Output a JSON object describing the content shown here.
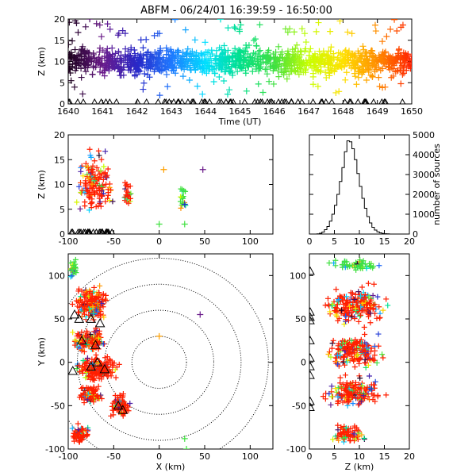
{
  "title": "ABFM - 06/24/01 16:39:59 - 16:50:00",
  "colors": {
    "background": "#ffffff",
    "axes": "#000000",
    "time_scale": [
      "#1a001a",
      "#6a1a8a",
      "#2828c8",
      "#1e78ff",
      "#00e0ff",
      "#00e08c",
      "#40e040",
      "#c8ff00",
      "#ffe000",
      "#ff8c00",
      "#ff1e00"
    ]
  },
  "chart_data": [
    {
      "id": "time-height",
      "type": "scatter",
      "xlabel": "Time (UT)",
      "ylabel": "Z (km)",
      "xlim": [
        1640,
        1650
      ],
      "ylim": [
        0,
        20
      ],
      "xticks": [
        "1640",
        "1641",
        "1642",
        "1643",
        "1644",
        "1645",
        "1646",
        "1647",
        "1648",
        "1649",
        "1650"
      ],
      "yticks": [
        "0",
        "5",
        "10",
        "15",
        "20"
      ],
      "series": [
        {
          "marker": "cross",
          "color_by": "time",
          "x_range": [
            1640,
            1650
          ],
          "z_core": [
            4,
            16
          ],
          "z_outliers": [
            0,
            20
          ]
        },
        {
          "marker": "triangle",
          "color": "#000000",
          "z": 0
        }
      ]
    },
    {
      "id": "x-height",
      "type": "scatter",
      "ylabel": "Z (km)",
      "xlim": [
        -100,
        125
      ],
      "ylim": [
        0,
        20
      ],
      "xticks": [
        "-100",
        "-50",
        "0",
        "50",
        "100"
      ],
      "yticks": [
        "0",
        "5",
        "10",
        "15",
        "20"
      ],
      "clusters": [
        {
          "x": [
            -95,
            -45
          ],
          "z": [
            3,
            17
          ],
          "dominant": "#ff1e00"
        },
        {
          "x": [
            -40,
            -28
          ],
          "z": [
            5,
            11
          ],
          "dominant": "#ff1e00"
        },
        {
          "x": [
            22,
            30
          ],
          "z": [
            4,
            10
          ],
          "dominant": "#40e040"
        }
      ],
      "isolated_points": [
        {
          "x": 5,
          "z": 13,
          "color": "#ffa000"
        },
        {
          "x": 48,
          "z": 13,
          "color": "#6a1a8a"
        },
        {
          "x": 0,
          "z": 2,
          "color": "#40e040"
        },
        {
          "x": 28,
          "z": 2,
          "color": "#40e040"
        },
        {
          "x": 28,
          "z": 6,
          "color": "#2828c8"
        }
      ]
    },
    {
      "id": "altitude-histogram",
      "type": "bar",
      "ylabel": "number of sources",
      "xlim": [
        0,
        20
      ],
      "ylim": [
        0,
        5000
      ],
      "xticks": [
        "0",
        "5",
        "10",
        "15",
        "20"
      ],
      "yticks": [
        "0",
        "1000",
        "2000",
        "3000",
        "4000",
        "5000"
      ],
      "bin_width": 0.5,
      "bin_starts": [
        0,
        0.5,
        1,
        1.5,
        2,
        2.5,
        3,
        3.5,
        4,
        4.5,
        5,
        5.5,
        6,
        6.5,
        7,
        7.5,
        8,
        8.5,
        9,
        9.5,
        10,
        10.5,
        11,
        11.5,
        12,
        12.5,
        13,
        13.5,
        14,
        14.5,
        15,
        15.5,
        16,
        16.5,
        17,
        17.5,
        18,
        18.5,
        19,
        19.5
      ],
      "values": [
        0,
        0,
        0,
        10,
        40,
        100,
        220,
        380,
        650,
        1000,
        1450,
        2000,
        2650,
        3350,
        4150,
        4700,
        4650,
        4300,
        3750,
        3050,
        2400,
        1800,
        1300,
        880,
        560,
        340,
        200,
        110,
        60,
        30,
        15,
        8,
        0,
        0,
        0,
        0,
        0,
        0,
        0,
        0
      ]
    },
    {
      "id": "plan-view",
      "type": "scatter",
      "xlabel": "X (km)",
      "ylabel": "Y (km)",
      "xlim": [
        -100,
        125
      ],
      "ylim": [
        -100,
        125
      ],
      "xticks": [
        "-100",
        "-50",
        "0",
        "50",
        "100"
      ],
      "yticks": [
        "-100",
        "-50",
        "0",
        "50",
        "100"
      ],
      "range_rings_km": [
        30,
        60,
        90,
        120
      ],
      "clusters": [
        {
          "x": [
            -98,
            -90
          ],
          "y": [
            95,
            120
          ],
          "dominant": "#40e040"
        },
        {
          "x": [
            -95,
            -55
          ],
          "y": [
            45,
            90
          ],
          "dominant": "#ff1e00"
        },
        {
          "x": [
            -98,
            -55
          ],
          "y": [
            10,
            40
          ],
          "dominant": "#ff1e00"
        },
        {
          "x": [
            -95,
            -40
          ],
          "y": [
            -25,
            10
          ],
          "dominant": "#ff1e00"
        },
        {
          "x": [
            -92,
            -60
          ],
          "y": [
            -50,
            -25
          ],
          "dominant": "#ff1e00"
        },
        {
          "x": [
            -55,
            -30
          ],
          "y": [
            -65,
            -35
          ],
          "dominant": "#ff1e00"
        },
        {
          "x": [
            -98,
            -75
          ],
          "y": [
            -95,
            -70
          ],
          "dominant": "#ff1e00"
        }
      ],
      "stations": [
        {
          "x": -93,
          "y": 55
        },
        {
          "x": -88,
          "y": 50
        },
        {
          "x": -75,
          "y": 50
        },
        {
          "x": -65,
          "y": 45
        },
        {
          "x": -85,
          "y": 25
        },
        {
          "x": -70,
          "y": 20
        },
        {
          "x": -68,
          "y": 0
        },
        {
          "x": -75,
          "y": -5
        },
        {
          "x": -60,
          "y": -8
        },
        {
          "x": -95,
          "y": -10
        },
        {
          "x": -45,
          "y": -50
        },
        {
          "x": -40,
          "y": -55
        }
      ],
      "isolated_points": [
        {
          "x": 45,
          "y": 55,
          "color": "#6a1a8a"
        },
        {
          "x": 0,
          "y": 30,
          "color": "#ffa000"
        },
        {
          "x": 28,
          "y": -88,
          "color": "#40e040"
        },
        {
          "x": 30,
          "y": -100,
          "color": "#40e040"
        }
      ]
    },
    {
      "id": "height-y",
      "type": "scatter",
      "xlabel": "Z (km)",
      "xlim": [
        0,
        20
      ],
      "ylim": [
        -100,
        125
      ],
      "xticks": [
        "0",
        "5",
        "10",
        "15",
        "20"
      ],
      "yticks": [
        "-100",
        "-50",
        "0",
        "50",
        "100"
      ],
      "clusters": [
        {
          "z": [
            4,
            15
          ],
          "y": [
            105,
            120
          ],
          "dominant": "#40e040"
        },
        {
          "z": [
            2,
            16
          ],
          "y": [
            40,
            90
          ],
          "dominant": "#ff1e00"
        },
        {
          "z": [
            2,
            16
          ],
          "y": [
            -10,
            35
          ],
          "dominant": "#ff1e00"
        },
        {
          "z": [
            2,
            16
          ],
          "y": [
            -55,
            -15
          ],
          "dominant": "#ff1e00"
        },
        {
          "z": [
            4,
            12
          ],
          "y": [
            -95,
            -70
          ],
          "dominant": "#ff1e00"
        }
      ],
      "stations": [
        {
          "z": 0,
          "y": 105
        },
        {
          "z": 0,
          "y": 58
        },
        {
          "z": 0,
          "y": 52
        },
        {
          "z": 0,
          "y": 48
        },
        {
          "z": 0,
          "y": 25
        },
        {
          "z": 0,
          "y": 5
        },
        {
          "z": 0,
          "y": -5
        },
        {
          "z": 0,
          "y": -15
        },
        {
          "z": 0,
          "y": -45
        },
        {
          "z": 0,
          "y": -52
        }
      ]
    }
  ]
}
